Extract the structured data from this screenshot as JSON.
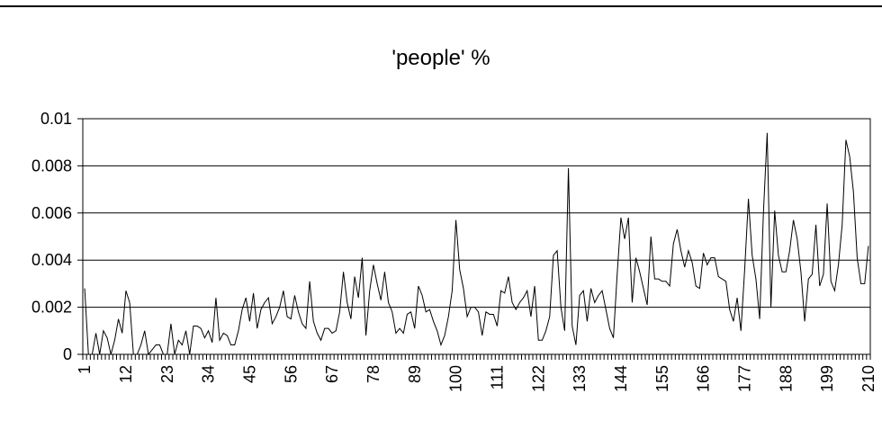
{
  "chart_data": {
    "type": "line",
    "title": "'people' %",
    "xlabel": "",
    "ylabel": "",
    "ylim": [
      0,
      0.01
    ],
    "y_ticks": [
      "0",
      "0.002",
      "0.004",
      "0.006",
      "0.008",
      "0.01"
    ],
    "x_ticks": [
      "1",
      "12",
      "23",
      "34",
      "45",
      "56",
      "67",
      "78",
      "89",
      "100",
      "111",
      "122",
      "133",
      "144",
      "155",
      "166",
      "177",
      "188",
      "199",
      "210"
    ],
    "grid": "horizontal",
    "legend": "none",
    "line_color": "#000000",
    "series": [
      {
        "values": [
          0.0028,
          0.0,
          0.0,
          0.0009,
          0.0,
          0.001,
          0.0007,
          0.0,
          0.0006,
          0.0015,
          0.0009,
          0.0027,
          0.0022,
          0.0,
          0.0,
          0.0004,
          0.001,
          0.0,
          0.0002,
          0.0004,
          0.0004,
          0.0,
          0.0,
          0.0013,
          0.0,
          0.0006,
          0.0004,
          0.001,
          0.0,
          0.0012,
          0.0012,
          0.0011,
          0.0007,
          0.001,
          0.0005,
          0.0024,
          0.0006,
          0.0009,
          0.0008,
          0.0004,
          0.0004,
          0.001,
          0.0019,
          0.0024,
          0.0014,
          0.0026,
          0.0011,
          0.0019,
          0.0022,
          0.0024,
          0.0013,
          0.0016,
          0.002,
          0.0027,
          0.0016,
          0.0015,
          0.0025,
          0.0018,
          0.0013,
          0.0011,
          0.0031,
          0.0014,
          0.0009,
          0.0006,
          0.0011,
          0.0011,
          0.0009,
          0.001,
          0.0018,
          0.0035,
          0.0022,
          0.0015,
          0.0033,
          0.0024,
          0.0041,
          0.0008,
          0.0027,
          0.0038,
          0.003,
          0.0023,
          0.0035,
          0.0022,
          0.0018,
          0.0009,
          0.0011,
          0.0009,
          0.0017,
          0.0018,
          0.0011,
          0.0029,
          0.0025,
          0.0018,
          0.0019,
          0.0014,
          0.001,
          0.0004,
          0.0008,
          0.0016,
          0.0027,
          0.0057,
          0.0036,
          0.0028,
          0.0016,
          0.002,
          0.002,
          0.0018,
          0.0008,
          0.0018,
          0.0017,
          0.0017,
          0.0012,
          0.0027,
          0.0026,
          0.0033,
          0.0022,
          0.0019,
          0.0022,
          0.0024,
          0.0027,
          0.0016,
          0.0029,
          0.0006,
          0.0006,
          0.001,
          0.0016,
          0.0042,
          0.0044,
          0.002,
          0.001,
          0.0079,
          0.0012,
          0.0004,
          0.0025,
          0.0027,
          0.0014,
          0.0028,
          0.0022,
          0.0025,
          0.0027,
          0.0019,
          0.0011,
          0.0007,
          0.0034,
          0.0058,
          0.0049,
          0.0058,
          0.0022,
          0.0041,
          0.0035,
          0.0028,
          0.0021,
          0.005,
          0.0032,
          0.0032,
          0.0031,
          0.0031,
          0.0029,
          0.0047,
          0.0053,
          0.0044,
          0.0037,
          0.0044,
          0.0039,
          0.0029,
          0.0028,
          0.0043,
          0.0038,
          0.0041,
          0.0041,
          0.0033,
          0.0032,
          0.0031,
          0.0019,
          0.0014,
          0.0024,
          0.001,
          0.0036,
          0.0066,
          0.0042,
          0.0032,
          0.0015,
          0.006,
          0.0094,
          0.002,
          0.0061,
          0.0042,
          0.0035,
          0.0035,
          0.0044,
          0.0057,
          0.0049,
          0.0035,
          0.0014,
          0.0032,
          0.0034,
          0.0055,
          0.0029,
          0.0034,
          0.0064,
          0.0031,
          0.0027,
          0.0038,
          0.0055,
          0.0091,
          0.0084,
          0.0069,
          0.0041,
          0.003,
          0.003,
          0.0046
        ]
      }
    ]
  }
}
